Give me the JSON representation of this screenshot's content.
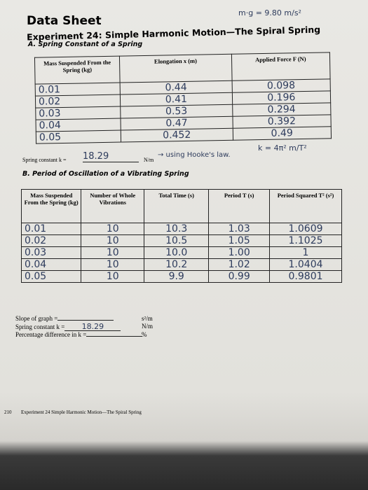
{
  "header": {
    "title": "Data Sheet",
    "note": "m·g = 9.80 m/s²",
    "experiment": "Experiment 24: Simple Harmonic Motion—The Spiral Spring"
  },
  "section_a": {
    "heading": "A. Spring Constant of a Spring",
    "columns": [
      "Mass Suspended From the Spring (kg)",
      "Elongation x (m)",
      "Applied Force F (N)"
    ],
    "rows": [
      [
        "0.01",
        "0.44",
        "0.098"
      ],
      [
        "0.02",
        "0.41",
        "0.196"
      ],
      [
        "0.03",
        "0.53",
        "0.294"
      ],
      [
        "0.04",
        "0.47",
        "0.392"
      ],
      [
        "0.05",
        "0.452",
        "0.49"
      ]
    ],
    "spring_constant": {
      "label": "Spring constant k =",
      "value": "18.29",
      "unit": "N/m",
      "note": "→ using Hooke's law.",
      "formula": "k = 4π² m/T²"
    }
  },
  "section_b": {
    "heading": "B. Period of Oscillation of a Vibrating Spring",
    "columns": [
      "Mass Suspended From the Spring (kg)",
      "Number of Whole Vibrations",
      "Total Time (s)",
      "Period T (s)",
      "Period Squared T² (s²)"
    ],
    "rows": [
      [
        "0.01",
        "10",
        "10.3",
        "1.03",
        "1.0609"
      ],
      [
        "0.02",
        "10",
        "10.5",
        "1.05",
        "1.1025"
      ],
      [
        "0.03",
        "10",
        "10.0",
        "1.00",
        "1"
      ],
      [
        "0.04",
        "10",
        "10.2",
        "1.02",
        "1.0404"
      ],
      [
        "0.05",
        "10",
        "9.9",
        "0.99",
        "0.9801"
      ]
    ],
    "results": [
      {
        "label": "Slope of graph =",
        "value": "",
        "unit": "s²/m"
      },
      {
        "label": "Spring constant k =",
        "value": "18.29",
        "unit": "N/m"
      },
      {
        "label": "Percentage difference in k =",
        "value": "",
        "unit": "%"
      }
    ]
  },
  "footer": {
    "page": "210",
    "text": "Experiment 24 Simple Harmonic Motion—The Spiral Spring"
  }
}
